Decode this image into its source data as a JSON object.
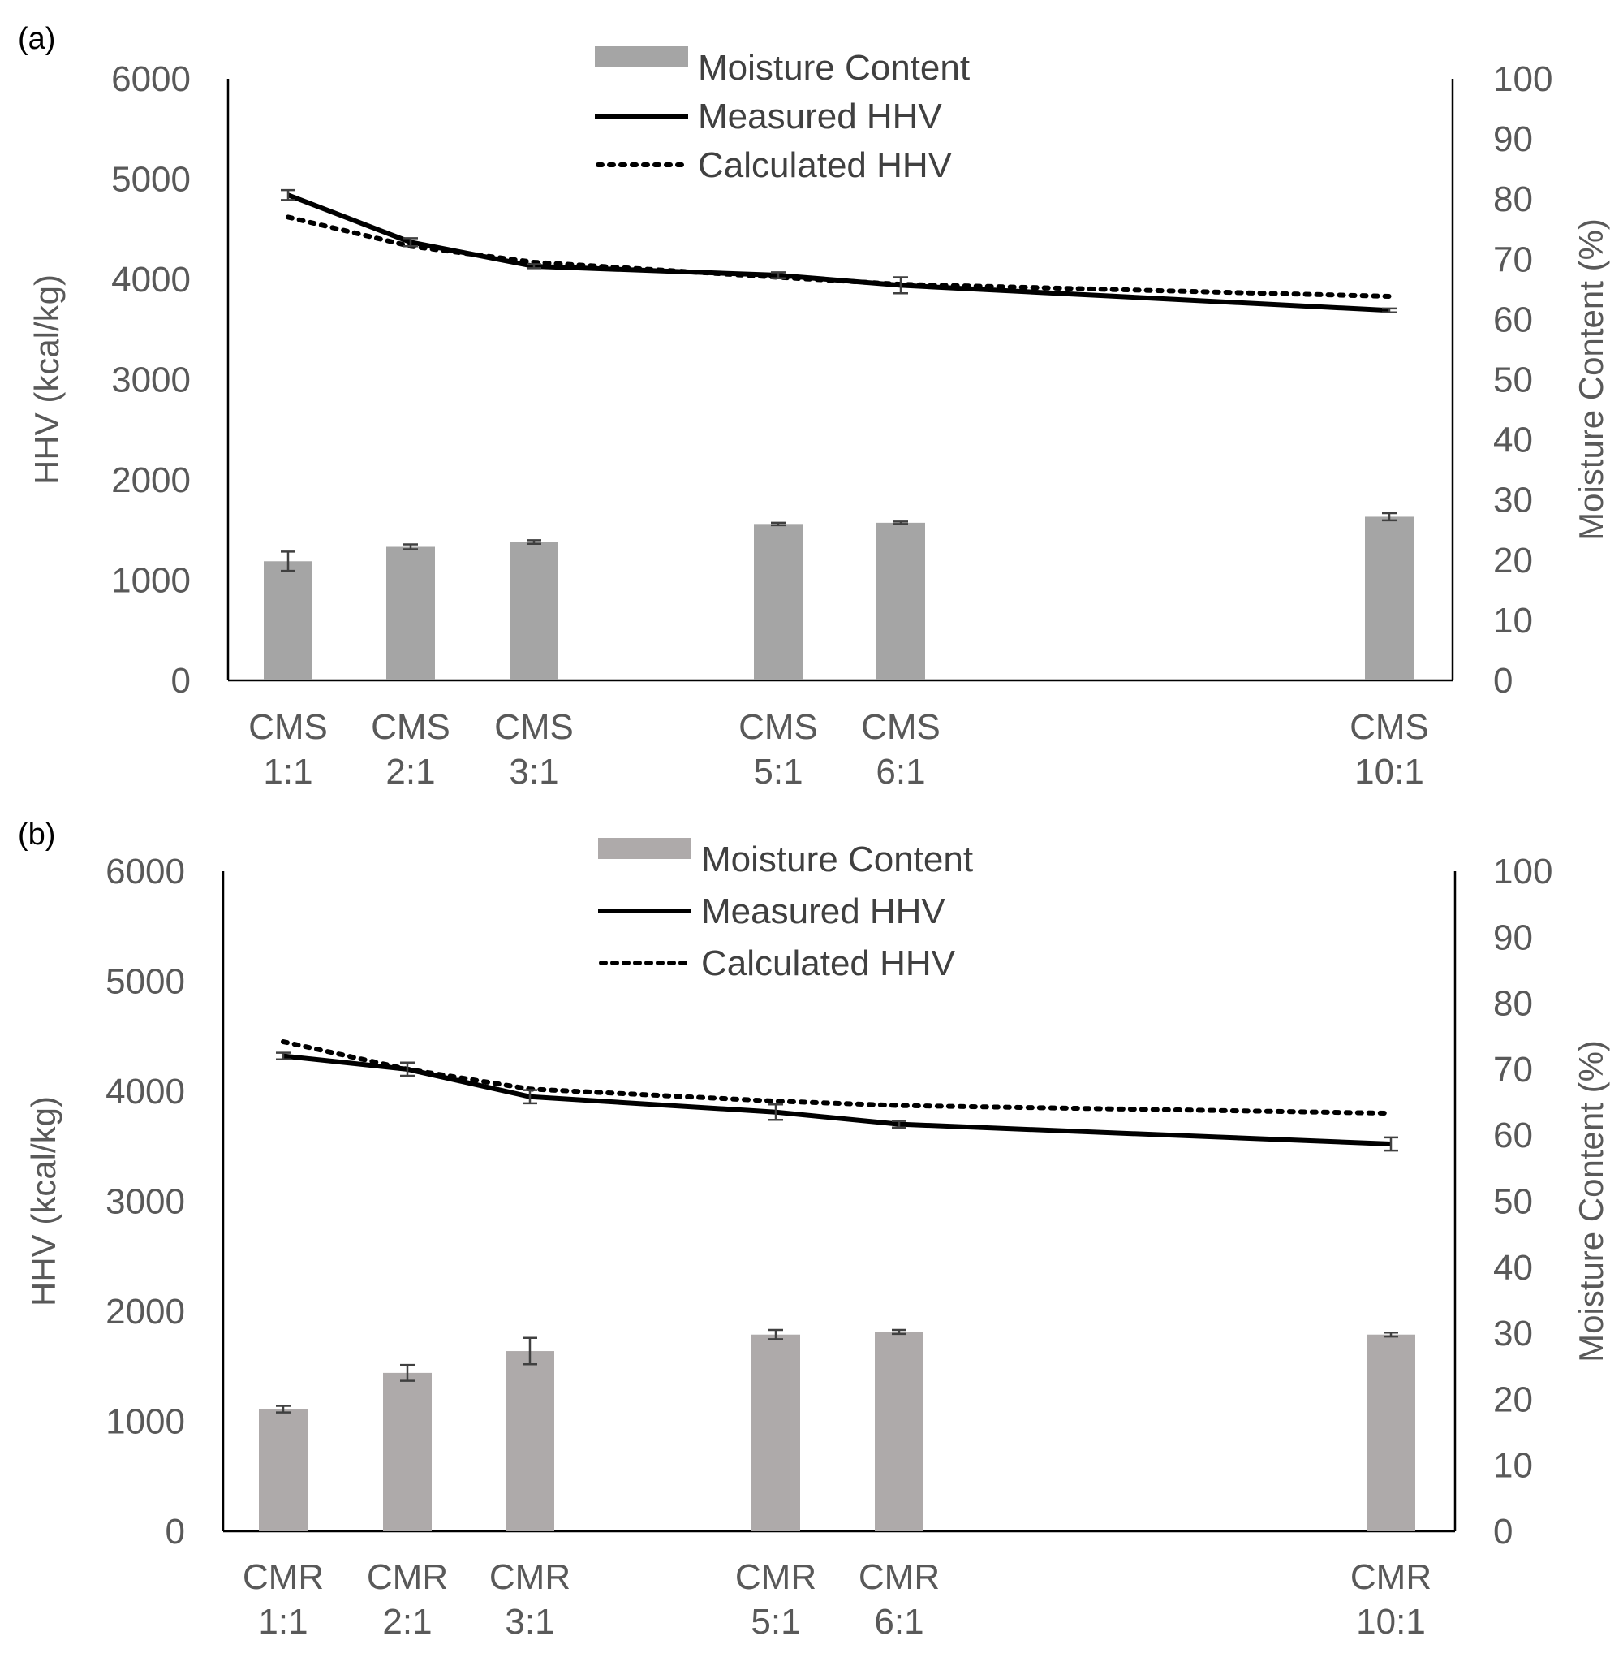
{
  "chart_data": [
    {
      "panel": "(a)",
      "type": "bar+line",
      "categories": [
        {
          "line1": "CMS",
          "line2": "1:1",
          "x": 1
        },
        {
          "line1": "CMS",
          "line2": "2:1",
          "x": 2
        },
        {
          "line1": "CMS",
          "line2": "3:1",
          "x": 3
        },
        {
          "line1": "CMS",
          "line2": "5:1",
          "x": 5
        },
        {
          "line1": "CMS",
          "line2": "6:1",
          "x": 6
        },
        {
          "line1": "CMS",
          "line2": "10:1",
          "x": 10
        }
      ],
      "ylabel_left": "HHV (kcal/kg)",
      "ylabel_right": "Moisture Content (%)",
      "ylim_left": [
        0,
        6000
      ],
      "ylim_right": [
        0,
        100
      ],
      "yticks_left": [
        "0",
        "1000",
        "2000",
        "3000",
        "4000",
        "5000",
        "6000"
      ],
      "yticks_right": [
        "0",
        "10",
        "20",
        "30",
        "40",
        "50",
        "60",
        "70",
        "80",
        "90",
        "100"
      ],
      "legend": [
        "Moisture Content",
        "Measured HHV",
        "Calculated HHV"
      ],
      "moisture": [
        19.8,
        22.2,
        23.0,
        26.0,
        26.2,
        27.2
      ],
      "moisture_err": [
        1.6,
        0.4,
        0.3,
        0.2,
        0.2,
        0.6
      ],
      "measured_hhv": [
        4840,
        4370,
        4130,
        4040,
        3940,
        3690
      ],
      "measured_err": [
        50,
        40,
        20,
        30,
        80,
        20
      ],
      "calculated_hhv": [
        4620,
        4330,
        4170,
        4020,
        3950,
        3830
      ]
    },
    {
      "panel": "(b)",
      "type": "bar+line",
      "categories": [
        {
          "line1": "CMR",
          "line2": "1:1",
          "x": 1
        },
        {
          "line1": "CMR",
          "line2": "2:1",
          "x": 2
        },
        {
          "line1": "CMR",
          "line2": "3:1",
          "x": 3
        },
        {
          "line1": "CMR",
          "line2": "5:1",
          "x": 5
        },
        {
          "line1": "CMR",
          "line2": "6:1",
          "x": 6
        },
        {
          "line1": "CMR",
          "line2": "10:1",
          "x": 10
        }
      ],
      "ylabel_left": "HHV (kcal/kg)",
      "ylabel_right": "Moisture Content (%)",
      "ylim_left": [
        0,
        6000
      ],
      "ylim_right": [
        0,
        100
      ],
      "yticks_left": [
        "0",
        "1000",
        "2000",
        "3000",
        "4000",
        "5000",
        "6000"
      ],
      "yticks_right": [
        "0",
        "10",
        "20",
        "30",
        "40",
        "50",
        "60",
        "70",
        "80",
        "90",
        "100"
      ],
      "legend": [
        "Moisture Content",
        "Measured HHV",
        "Calculated HHV"
      ],
      "moisture": [
        18.5,
        24.0,
        27.3,
        29.8,
        30.2,
        29.8
      ],
      "moisture_err": [
        0.5,
        1.2,
        2.0,
        0.7,
        0.3,
        0.3
      ],
      "measured_hhv": [
        4320,
        4200,
        3950,
        3810,
        3700,
        3520
      ],
      "measured_err": [
        30,
        60,
        60,
        70,
        30,
        60
      ],
      "calculated_hhv": [
        4450,
        4200,
        4020,
        3910,
        3870,
        3800
      ]
    }
  ]
}
